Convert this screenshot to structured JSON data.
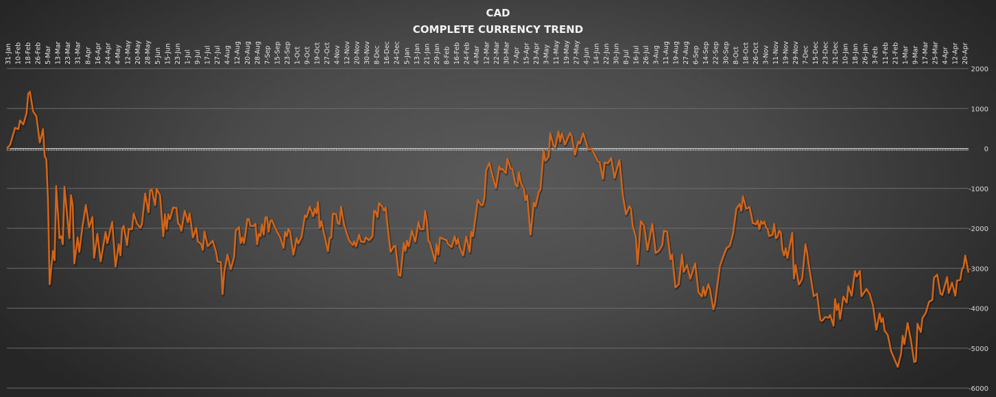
{
  "chart_data": {
    "type": "line",
    "title": "CAD",
    "subtitle": "COMPLETE CURRENCY TREND",
    "xlabel": "",
    "ylabel": "",
    "ylim": [
      -6000,
      2000
    ],
    "yticks": [
      2000,
      1000,
      0,
      -1000,
      -2000,
      -3000,
      -4000,
      -5000,
      -6000
    ],
    "grid": true,
    "legend": "none",
    "line_color": "#d2651a",
    "x_tick_labels": [
      "31-Jan",
      "10-Feb",
      "18-Feb",
      "26-Feb",
      "5-Mar",
      "13-Mar",
      "23-Mar",
      "31-Mar",
      "8-Apr",
      "16-Apr",
      "24-Apr",
      "4-May",
      "12-May",
      "20-May",
      "28-May",
      "5-Jun",
      "15-Jun",
      "23-Jun",
      "1-Jul",
      "9-Jul",
      "17-Jul",
      "27-Jul",
      "4-Aug",
      "12-Aug",
      "20-Aug",
      "28-Aug",
      "7-Sep",
      "15-Sep",
      "23-Sep",
      "1-Oct",
      "9-Oct",
      "19-Oct",
      "27-Oct",
      "4-Nov",
      "12-Nov",
      "20-Nov",
      "30-Nov",
      "8-Dec",
      "16-Dec",
      "24-Dec",
      "5-Jan",
      "13-Jan",
      "21-Jan",
      "29-Jan",
      "8-Feb",
      "16-Feb",
      "24-Feb",
      "4-Mar",
      "12-Mar",
      "22-Mar",
      "30-Mar",
      "7-Apr",
      "15-Apr",
      "23-Apr",
      "3-May",
      "11-May",
      "19-May",
      "27-May",
      "4-Jun",
      "14-Jun",
      "22-Jun",
      "30-Jun",
      "8-Jul",
      "16-Jul",
      "26-Jul",
      "3-Aug",
      "11-Aug",
      "19-Aug",
      "27-Aug",
      "6-Sep",
      "14-Sep",
      "22-Sep",
      "30-Sep",
      "8-Oct",
      "18-Oct",
      "26-Oct",
      "3-Nov",
      "11-Nov",
      "19-Nov",
      "29-Nov",
      "7-Dec",
      "15-Dec",
      "23-Dec",
      "31-Dec",
      "10-Jan",
      "18-Jan",
      "26-Jan",
      "3-Feb",
      "11-Feb",
      "21-Feb",
      "1-Mar",
      "9-Mar",
      "17-Mar",
      "25-Mar",
      "4-Apr",
      "12-Apr",
      "20-Apr"
    ],
    "x_range": [
      0,
      584
    ],
    "series": [
      {
        "name": "CAD",
        "x": [
          0,
          2,
          5,
          7,
          8,
          10,
          12,
          13,
          14,
          16,
          18,
          20,
          22,
          23,
          24,
          25,
          26,
          28,
          29,
          30,
          32,
          33,
          34,
          35,
          38,
          39,
          40,
          41,
          43,
          44,
          46,
          48,
          50,
          52,
          53,
          55,
          57,
          60,
          61,
          64,
          66,
          68,
          69,
          70,
          71,
          73,
          74,
          76,
          77,
          79,
          81,
          82,
          84,
          86,
          87,
          88,
          90,
          91,
          93,
          95,
          96,
          97,
          98,
          99,
          101,
          103,
          104,
          105,
          106,
          108,
          110,
          111,
          113,
          115,
          116,
          118,
          119,
          120,
          122,
          123,
          125,
          127,
          128,
          130,
          131,
          132,
          134,
          136,
          138,
          139,
          141,
          142,
          143,
          144,
          145,
          146,
          147,
          148,
          150,
          151,
          152,
          153,
          154,
          155,
          156,
          157,
          158,
          159,
          160,
          161,
          164,
          166,
          168,
          169,
          170,
          171,
          172,
          174,
          176,
          177,
          179,
          181,
          182,
          184,
          186,
          187,
          188,
          189,
          190,
          191,
          193,
          195,
          196,
          197,
          198,
          200,
          201,
          202,
          203,
          204,
          205,
          207,
          208,
          210,
          211,
          212,
          214,
          215,
          217,
          218,
          220,
          222,
          223,
          224,
          225,
          226,
          228,
          229,
          230,
          231,
          233,
          235,
          236,
          238,
          239,
          241,
          242,
          243,
          244,
          246,
          248,
          250,
          251,
          253,
          254,
          255,
          256,
          257,
          260,
          261,
          262,
          263,
          267,
          268,
          270,
          272,
          273,
          274,
          275,
          277,
          279,
          281,
          282,
          283,
          286,
          288,
          289,
          290,
          291,
          293,
          295,
          297,
          299,
          300,
          301,
          303,
          304,
          306,
          307,
          309,
          310,
          311,
          312,
          314,
          315,
          316,
          318,
          320,
          321,
          323,
          324,
          326,
          327,
          329,
          330,
          332,
          333,
          335,
          336,
          337,
          339,
          342,
          343,
          345,
          347,
          348,
          350,
          353,
          355,
          357,
          359,
          360,
          362,
          363,
          365,
          367,
          369,
          370,
          372,
          374,
          376,
          378,
          379,
          380,
          382,
          383,
          385,
          387,
          389,
          392,
          394,
          396,
          398,
          399,
          401,
          403,
          404,
          406,
          408,
          410,
          411,
          413,
          415,
          418,
          420,
          422,
          423,
          424,
          426,
          427,
          429,
          430,
          433,
          435,
          437,
          439,
          441,
          443,
          445,
          446,
          447,
          449,
          451,
          452,
          453,
          455,
          456,
          457,
          458,
          459,
          460,
          461,
          462,
          463,
          465,
          466,
          467,
          468,
          469,
          470,
          471,
          472,
          473,
          474,
          477,
          478,
          479,
          481,
          482,
          483,
          485,
          486,
          487,
          490,
          492,
          494,
          495,
          497,
          499,
          500,
          502,
          503,
          504,
          505,
          506,
          508,
          510,
          511,
          513,
          515,
          516,
          518,
          519,
          522,
          524,
          526,
          528,
          530,
          531,
          532,
          533,
          535,
          537,
          541,
          543,
          544,
          545,
          547,
          549,
          551,
          552,
          553,
          555,
          556,
          558,
          560,
          562,
          563,
          565,
          567,
          568,
          571,
          572,
          574,
          576,
          577,
          579,
          580,
          581,
          582,
          584
        ],
        "values": [
          0,
          90,
          515,
          480,
          700,
          600,
          890,
          1370,
          1420,
          925,
          800,
          150,
          480,
          -190,
          -280,
          -1300,
          -3400,
          -2570,
          -2800,
          -940,
          -2250,
          -2200,
          -2400,
          -960,
          -2250,
          -1170,
          -1420,
          -2880,
          -2230,
          -2590,
          -1940,
          -1420,
          -1970,
          -1720,
          -2740,
          -2140,
          -2830,
          -2090,
          -2370,
          -1840,
          -2960,
          -2400,
          -2680,
          -2020,
          -1940,
          -2420,
          -2020,
          -2020,
          -1630,
          -1880,
          -1990,
          -1900,
          -1130,
          -1600,
          -1050,
          -1030,
          -1420,
          -1010,
          -1170,
          -2200,
          -1650,
          -2020,
          -1650,
          -1770,
          -1480,
          -1490,
          -1880,
          -1920,
          -2060,
          -1560,
          -1850,
          -1630,
          -2230,
          -1990,
          -2330,
          -2400,
          -2540,
          -2080,
          -2450,
          -2400,
          -2310,
          -2590,
          -2830,
          -2850,
          -3650,
          -3090,
          -2660,
          -3020,
          -2710,
          -2060,
          -1970,
          -2370,
          -2230,
          -2370,
          -2110,
          -1770,
          -1770,
          -1940,
          -1940,
          -1890,
          -2400,
          -2140,
          -2200,
          -1900,
          -2160,
          -1730,
          -1720,
          -2090,
          -1820,
          -1800,
          -2080,
          -2230,
          -2490,
          -2090,
          -2200,
          -2020,
          -2080,
          -2660,
          -2250,
          -2380,
          -2210,
          -1680,
          -1720,
          -1460,
          -1700,
          -1510,
          -1630,
          -1340,
          -1990,
          -1820,
          -2200,
          -2570,
          -2250,
          -2230,
          -1630,
          -1650,
          -1870,
          -1900,
          -1460,
          -1730,
          -1940,
          -2200,
          -2310,
          -2420,
          -2330,
          -2450,
          -2160,
          -2330,
          -2350,
          -2230,
          -2300,
          -2200,
          -1560,
          -1580,
          -1720,
          -1370,
          -1460,
          -1560,
          -1480,
          -1880,
          -2590,
          -2450,
          -2440,
          -3170,
          -3190,
          -2370,
          -2570,
          -2310,
          -2450,
          -2060,
          -2330,
          -1840,
          -2020,
          -2020,
          -1560,
          -1820,
          -2310,
          -2370,
          -2830,
          -2400,
          -2660,
          -2230,
          -2300,
          -2400,
          -2470,
          -2200,
          -2400,
          -2260,
          -2470,
          -2680,
          -2210,
          -2590,
          -2090,
          -2200,
          -1290,
          -1420,
          -1420,
          -1220,
          -550,
          -360,
          -700,
          -990,
          -450,
          -530,
          -510,
          -620,
          -260,
          -510,
          -520,
          -920,
          -960,
          -600,
          -850,
          -1030,
          -1300,
          -1170,
          -2160,
          -1360,
          -1450,
          -1090,
          -1030,
          -40,
          -310,
          -210,
          380,
          70,
          30,
          430,
          170,
          380,
          100,
          390,
          310,
          -160,
          170,
          120,
          380,
          -20,
          -10,
          -160,
          -330,
          -350,
          -760,
          -350,
          -370,
          -240,
          -740,
          -570,
          -290,
          -1170,
          -1650,
          -1450,
          -1510,
          -1940,
          -2230,
          -2900,
          -1820,
          -1940,
          -2540,
          -1890,
          -2620,
          -2560,
          -2420,
          -2060,
          -2090,
          -2780,
          -2660,
          -3480,
          -3400,
          -2660,
          -3090,
          -2920,
          -3260,
          -2880,
          -3600,
          -3710,
          -3470,
          -3690,
          -3400,
          -3530,
          -4030,
          -3880,
          -2950,
          -2710,
          -2500,
          -2440,
          -2130,
          -1510,
          -1390,
          -1560,
          -1200,
          -1510,
          -1470,
          -1660,
          -1870,
          -1900,
          -1800,
          -2020,
          -1820,
          -1890,
          -1830,
          -1970,
          -2020,
          -2200,
          -2160,
          -1890,
          -2250,
          -2210,
          -2060,
          -2110,
          -2540,
          -2680,
          -2500,
          -2740,
          -2110,
          -3260,
          -2920,
          -3410,
          -3340,
          -3260,
          -2400,
          -2620,
          -2920,
          -3700,
          -3640,
          -4290,
          -4320,
          -4220,
          -4240,
          -4170,
          -4440,
          -3770,
          -4050,
          -3890,
          -4270,
          -3710,
          -3860,
          -3450,
          -3690,
          -3070,
          -3210,
          -3070,
          -3700,
          -3520,
          -3650,
          -3940,
          -4540,
          -4130,
          -4350,
          -4250,
          -4560,
          -4680,
          -5080,
          -5470,
          -5140,
          -4690,
          -4900,
          -4370,
          -4800,
          -5350,
          -5330,
          -4390,
          -4600,
          -4250,
          -4120,
          -3840,
          -3790,
          -3240,
          -3160,
          -3640,
          -3670,
          -3220,
          -3620,
          -3360,
          -3690,
          -3310,
          -3290,
          -3030,
          -2970,
          -2680,
          -3110
        ]
      }
    ]
  }
}
